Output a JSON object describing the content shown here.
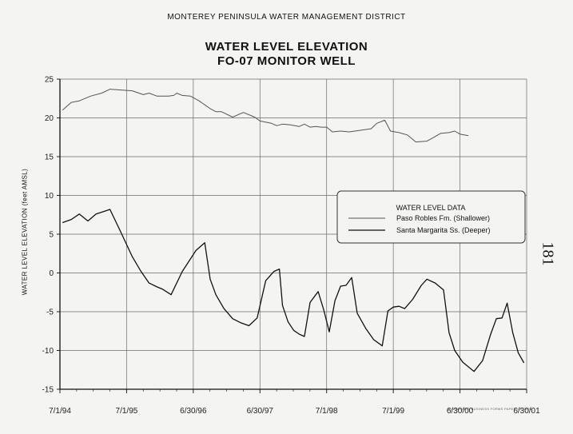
{
  "header": {
    "district": "MONTEREY PENINSULA WATER MANAGEMENT DISTRICT",
    "title_line1": "WATER LEVEL ELEVATION",
    "title_line2": "FO-07 MONITOR WELL"
  },
  "page_number": "181",
  "fine_print": "WINEWORKS BUSINESS FORMS PAPER CO 1995",
  "chart_data": {
    "type": "line",
    "title": "WATER LEVEL ELEVATION FO-07 MONITOR WELL",
    "xlabel": "",
    "ylabel": "WATER LEVEL ELEVATION (feet AMSL)",
    "x_tick_labels": [
      "7/1/94",
      "7/1/95",
      "6/30/96",
      "6/30/97",
      "7/1/98",
      "7/1/99",
      "6/30/00",
      "6/30/01"
    ],
    "x_range": [
      "1994-07-01",
      "2001-06-30"
    ],
    "y_ticks": [
      25,
      20,
      15,
      10,
      5,
      0,
      -5,
      -10,
      -15
    ],
    "ylim": [
      -15,
      25
    ],
    "grid": true,
    "legend": {
      "title": "WATER LEVEL DATA",
      "position": "right-middle",
      "entries": [
        "Paso Robles Fm. (Shallower)",
        "Santa Margarita Ss. (Deeper)"
      ]
    },
    "series": [
      {
        "name": "Paso Robles Fm. (Shallower)",
        "color": "#555555",
        "width": 1.0,
        "points": [
          [
            "1994-07-15",
            21.0
          ],
          [
            "1994-09-01",
            22.0
          ],
          [
            "1994-10-15",
            22.2
          ],
          [
            "1994-12-15",
            22.8
          ],
          [
            "1995-02-15",
            23.2
          ],
          [
            "1995-04-01",
            23.7
          ],
          [
            "1995-06-01",
            23.6
          ],
          [
            "1995-08-01",
            23.5
          ],
          [
            "1995-10-01",
            23.0
          ],
          [
            "1995-11-01",
            23.2
          ],
          [
            "1995-12-15",
            22.8
          ],
          [
            "1996-02-15",
            22.8
          ],
          [
            "1996-03-15",
            22.9
          ],
          [
            "1996-04-01",
            23.2
          ],
          [
            "1996-05-01",
            22.9
          ],
          [
            "1996-06-15",
            22.8
          ],
          [
            "1996-08-01",
            22.2
          ],
          [
            "1996-10-01",
            21.2
          ],
          [
            "1996-11-01",
            20.8
          ],
          [
            "1996-12-01",
            20.8
          ],
          [
            "1997-02-01",
            20.1
          ],
          [
            "1997-04-01",
            20.7
          ],
          [
            "1997-06-01",
            20.1
          ],
          [
            "1997-07-01",
            19.6
          ],
          [
            "1997-09-01",
            19.3
          ],
          [
            "1997-10-01",
            19.0
          ],
          [
            "1997-11-01",
            19.2
          ],
          [
            "1997-12-15",
            19.1
          ],
          [
            "1998-02-01",
            18.9
          ],
          [
            "1998-03-01",
            19.2
          ],
          [
            "1998-04-01",
            18.8
          ],
          [
            "1998-05-01",
            18.9
          ],
          [
            "1998-06-01",
            18.8
          ],
          [
            "1998-07-01",
            18.8
          ],
          [
            "1998-08-01",
            18.2
          ],
          [
            "1998-09-15",
            18.3
          ],
          [
            "1998-11-01",
            18.2
          ],
          [
            "1999-01-01",
            18.4
          ],
          [
            "1999-03-01",
            18.6
          ],
          [
            "1999-04-01",
            19.3
          ],
          [
            "1999-05-15",
            19.7
          ],
          [
            "1999-06-15",
            18.3
          ],
          [
            "1999-08-01",
            18.1
          ],
          [
            "1999-09-15",
            17.8
          ],
          [
            "1999-11-01",
            16.9
          ],
          [
            "2000-01-01",
            17.0
          ],
          [
            "2000-02-01",
            17.4
          ],
          [
            "2000-03-15",
            18.0
          ],
          [
            "2000-05-01",
            18.1
          ],
          [
            "2000-06-01",
            18.3
          ],
          [
            "2000-07-01",
            17.9
          ],
          [
            "2000-08-15",
            17.7
          ]
        ]
      },
      {
        "name": "Santa Margarita Ss. (Deeper)",
        "color": "#111111",
        "width": 1.3,
        "points": [
          [
            "1994-07-15",
            6.5
          ],
          [
            "1994-09-01",
            6.9
          ],
          [
            "1994-10-15",
            7.6
          ],
          [
            "1994-12-01",
            6.7
          ],
          [
            "1995-01-15",
            7.6
          ],
          [
            "1995-04-01",
            8.2
          ],
          [
            "1995-06-01",
            5.2
          ],
          [
            "1995-08-01",
            2.1
          ],
          [
            "1995-09-15",
            0.3
          ],
          [
            "1995-11-01",
            -1.3
          ],
          [
            "1995-12-15",
            -1.8
          ],
          [
            "1996-01-15",
            -2.1
          ],
          [
            "1996-03-01",
            -2.8
          ],
          [
            "1996-05-01",
            0.2
          ],
          [
            "1996-07-15",
            2.9
          ],
          [
            "1996-09-01",
            3.9
          ],
          [
            "1996-10-01",
            -0.8
          ],
          [
            "1996-11-01",
            -2.8
          ],
          [
            "1996-12-15",
            -4.6
          ],
          [
            "1997-02-01",
            -5.9
          ],
          [
            "1997-03-15",
            -6.4
          ],
          [
            "1997-05-01",
            -6.8
          ],
          [
            "1997-06-15",
            -5.8
          ],
          [
            "1997-08-01",
            -1.0
          ],
          [
            "1997-09-15",
            0.2
          ],
          [
            "1997-10-15",
            0.5
          ],
          [
            "1997-11-01",
            -4.2
          ],
          [
            "1997-12-01",
            -6.3
          ],
          [
            "1998-01-01",
            -7.4
          ],
          [
            "1998-02-01",
            -7.9
          ],
          [
            "1998-03-01",
            -8.2
          ],
          [
            "1998-04-01",
            -3.8
          ],
          [
            "1998-05-15",
            -2.4
          ],
          [
            "1998-06-15",
            -4.8
          ],
          [
            "1998-07-15",
            -7.6
          ],
          [
            "1998-08-15",
            -3.6
          ],
          [
            "1998-09-15",
            -1.7
          ],
          [
            "1998-10-15",
            -1.6
          ],
          [
            "1998-11-15",
            -0.6
          ],
          [
            "1998-12-15",
            -5.2
          ],
          [
            "1999-02-01",
            -7.2
          ],
          [
            "1999-03-15",
            -8.6
          ],
          [
            "1999-05-01",
            -9.4
          ],
          [
            "1999-06-01",
            -4.9
          ],
          [
            "1999-07-01",
            -4.4
          ],
          [
            "1999-08-01",
            -4.3
          ],
          [
            "1999-09-01",
            -4.6
          ],
          [
            "1999-10-15",
            -3.4
          ],
          [
            "1999-12-01",
            -1.6
          ],
          [
            "2000-01-01",
            -0.8
          ],
          [
            "2000-02-15",
            -1.3
          ],
          [
            "2000-04-01",
            -2.2
          ],
          [
            "2000-05-01",
            -7.7
          ],
          [
            "2000-06-01",
            -10.0
          ],
          [
            "2000-07-15",
            -11.5
          ],
          [
            "2000-09-15",
            -12.7
          ],
          [
            "2000-11-01",
            -11.3
          ],
          [
            "2000-12-15",
            -7.9
          ],
          [
            "2001-01-15",
            -5.9
          ],
          [
            "2001-02-15",
            -5.8
          ],
          [
            "2001-03-15",
            -3.9
          ],
          [
            "2001-04-15",
            -7.7
          ],
          [
            "2001-05-15",
            -10.3
          ],
          [
            "2001-06-15",
            -11.6
          ]
        ]
      }
    ]
  }
}
